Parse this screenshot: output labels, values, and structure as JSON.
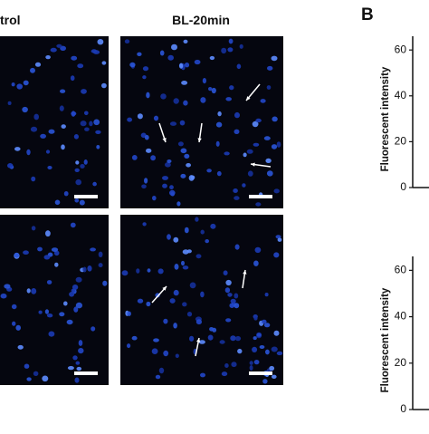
{
  "figure": {
    "column_titles": [
      "trol",
      "BL-20min"
    ],
    "panel_label": "B"
  },
  "chart_data": [
    {
      "type": "bar",
      "y_label": "Fluorescent intensity",
      "ylim": [
        0,
        66
      ],
      "yticks": [
        0,
        20,
        40,
        60
      ]
    },
    {
      "type": "bar",
      "y_label": "Fluorescent intensity",
      "ylim": [
        0,
        66
      ],
      "yticks": [
        0,
        20,
        40,
        60
      ]
    }
  ]
}
